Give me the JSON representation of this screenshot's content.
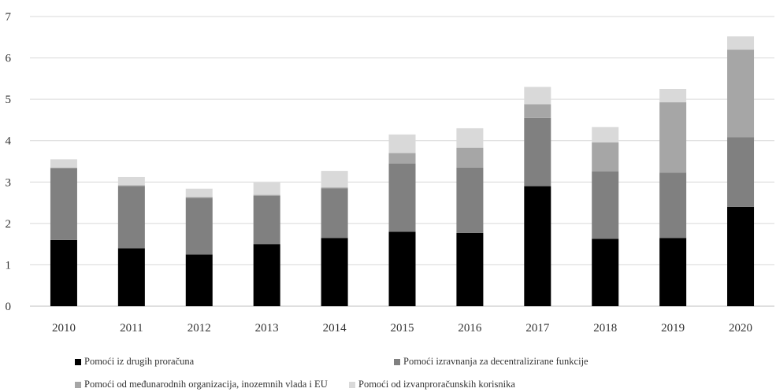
{
  "chart_data": {
    "type": "bar",
    "stacked": true,
    "categories": [
      "2010",
      "2011",
      "2012",
      "2013",
      "2014",
      "2015",
      "2016",
      "2017",
      "2018",
      "2019",
      "2020"
    ],
    "series": [
      {
        "name": "Pomoći iz drugih proračuna",
        "color": "#000000",
        "values": [
          1.6,
          1.4,
          1.25,
          1.5,
          1.65,
          1.8,
          1.77,
          2.9,
          1.63,
          1.65,
          2.4
        ]
      },
      {
        "name": "Pomoći izravnanja za decentralizirane funkcije",
        "color": "#808080",
        "values": [
          1.73,
          1.5,
          1.37,
          1.17,
          1.2,
          1.65,
          1.58,
          1.65,
          1.63,
          1.58,
          1.68
        ]
      },
      {
        "name": "Pomoći od međunarodnih organizacija, inozemnih vlada i EU",
        "color": "#a6a6a6",
        "values": [
          0.02,
          0.02,
          0.02,
          0.02,
          0.02,
          0.25,
          0.48,
          0.33,
          0.7,
          1.7,
          2.12
        ]
      },
      {
        "name": "Pomoći od izvanproračunskih korisnika",
        "color": "#d9d9d9",
        "values": [
          0.2,
          0.2,
          0.2,
          0.3,
          0.4,
          0.45,
          0.47,
          0.42,
          0.37,
          0.32,
          0.32
        ]
      }
    ],
    "yticks": [
      "0",
      "1",
      "2",
      "3",
      "4",
      "5",
      "6",
      "7"
    ],
    "ylim": [
      0,
      7
    ],
    "grid": true,
    "legend_position": "bottom"
  }
}
